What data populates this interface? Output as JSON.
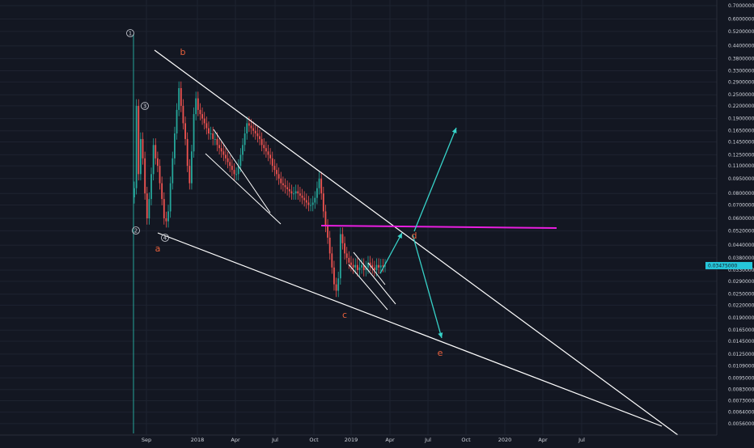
{
  "theme": {
    "background": "#131722",
    "grid": "#1e2330",
    "axis_text": "#d1d4dc",
    "candle_up": "#26a69a",
    "candle_down": "#ef5350",
    "trendline": "#ffffff",
    "resistance": "#e91ee0",
    "projection": "#37d3c9",
    "wave_label": "#e8603c",
    "price_badge": "#26c6da"
  },
  "chart_data": {
    "type": "candlestick",
    "scale": "log",
    "ylim": [
      0.005,
      0.72
    ],
    "y_ticks": [
      "0.70000000",
      "0.60000000",
      "0.52000000",
      "0.44000000",
      "0.38000000",
      "0.33000000",
      "0.29000000",
      "0.25000000",
      "0.22000000",
      "0.19000000",
      "0.16500000",
      "0.14500000",
      "0.12500000",
      "0.11000000",
      "0.09500000",
      "0.08000000",
      "0.07000000",
      "0.06000000",
      "0.05200000",
      "0.04400000",
      "0.03800000",
      "0.03300000",
      "0.02900000",
      "0.02500000",
      "0.02200000",
      "0.01900000",
      "0.01650000",
      "0.01450000",
      "0.01250000",
      "0.01090000",
      "0.00950000",
      "0.00830000",
      "0.00730000",
      "0.00640000",
      "0.00560000"
    ],
    "x_ticks": [
      "Sep",
      "2018",
      "Apr",
      "Jul",
      "Oct",
      "2019",
      "Apr",
      "Jul",
      "Oct",
      "2020",
      "Apr",
      "Jul"
    ],
    "current_price_label": "0.03475000",
    "wave_labels": [
      "1",
      "2",
      "3",
      "4",
      "a",
      "b",
      "c",
      "d",
      "e"
    ],
    "resistance_level": 0.0565,
    "series_close": [
      0.085,
      0.22,
      0.1,
      0.15,
      0.12,
      0.08,
      0.06,
      0.075,
      0.1,
      0.14,
      0.12,
      0.11,
      0.09,
      0.075,
      0.06,
      0.058,
      0.065,
      0.09,
      0.12,
      0.16,
      0.21,
      0.27,
      0.22,
      0.18,
      0.15,
      0.11,
      0.09,
      0.13,
      0.2,
      0.24,
      0.21,
      0.2,
      0.19,
      0.18,
      0.17,
      0.16,
      0.16,
      0.15,
      0.15,
      0.14,
      0.135,
      0.13,
      0.125,
      0.12,
      0.115,
      0.11,
      0.105,
      0.1,
      0.1,
      0.11,
      0.125,
      0.14,
      0.16,
      0.18,
      0.175,
      0.17,
      0.165,
      0.16,
      0.155,
      0.15,
      0.14,
      0.135,
      0.13,
      0.125,
      0.12,
      0.11,
      0.105,
      0.1,
      0.095,
      0.09,
      0.088,
      0.086,
      0.084,
      0.082,
      0.08,
      0.08,
      0.082,
      0.08,
      0.078,
      0.076,
      0.074,
      0.072,
      0.07,
      0.07,
      0.072,
      0.076,
      0.085,
      0.095,
      0.08,
      0.065,
      0.055,
      0.048,
      0.04,
      0.034,
      0.028,
      0.026,
      0.03,
      0.05,
      0.045,
      0.04,
      0.038,
      0.036,
      0.035,
      0.034,
      0.035,
      0.033,
      0.034,
      0.035,
      0.033,
      0.034,
      0.036,
      0.035,
      0.034,
      0.033,
      0.035,
      0.034,
      0.0348,
      0.0346,
      0.03475
    ]
  }
}
